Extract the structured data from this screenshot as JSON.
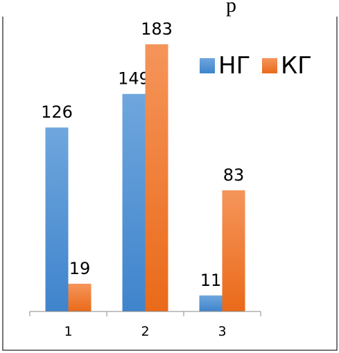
{
  "caption_fragment": "р",
  "chart_data": {
    "type": "bar",
    "categories": [
      "1",
      "2",
      "3"
    ],
    "series": [
      {
        "name": "НГ",
        "values": [
          126,
          149,
          11
        ],
        "color": "#4A8FD6"
      },
      {
        "name": "КГ",
        "values": [
          19,
          183,
          83
        ],
        "color": "#F07A2C"
      }
    ],
    "title": "",
    "xlabel": "",
    "ylabel": "",
    "ylim": [
      0,
      183
    ],
    "grid": false,
    "legend_position": "top-right",
    "data_labels": true
  }
}
